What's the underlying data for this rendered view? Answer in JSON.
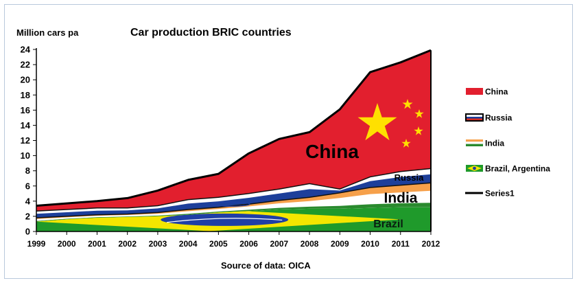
{
  "chart_data": {
    "type": "area",
    "title": "Car production  BRIC countries",
    "ylabel": "Million cars pa",
    "xlabel": "Source of data: OICA",
    "ylim": [
      0,
      24
    ],
    "yticks": [
      0,
      2,
      4,
      6,
      8,
      10,
      12,
      14,
      16,
      18,
      20,
      22,
      24
    ],
    "x": [
      "1999",
      "2000",
      "2001",
      "2002",
      "2003",
      "2004",
      "2005",
      "2006",
      "2007",
      "2008",
      "2009",
      "2010",
      "2011",
      "2012"
    ],
    "grid": false,
    "legend_position": "right",
    "series": [
      {
        "name": "Brazil, Argentina",
        "area_label": "Brazil",
        "color": "#1f9a2b",
        "values": [
          1.3,
          1.6,
          1.8,
          1.9,
          2.0,
          2.2,
          2.5,
          2.7,
          2.9,
          3.0,
          3.0,
          3.1,
          3.2,
          3.2
        ]
      },
      {
        "name": "India",
        "area_label": "India",
        "color": "#f6a04a",
        "values": [
          1.8,
          2.0,
          2.2,
          2.3,
          2.5,
          2.9,
          3.2,
          3.6,
          4.1,
          4.5,
          5.1,
          5.8,
          6.1,
          6.4
        ]
      },
      {
        "name": "Russia",
        "area_label": "Russia",
        "color": "#1d3f9a",
        "values": [
          2.7,
          2.9,
          3.1,
          3.1,
          3.4,
          4.2,
          4.5,
          5.0,
          5.6,
          6.3,
          5.6,
          7.2,
          7.9,
          8.3
        ]
      },
      {
        "name": "China",
        "area_label": "China",
        "color": "#e21f2e",
        "values": [
          3.4,
          3.7,
          4.0,
          4.4,
          5.4,
          6.8,
          7.6,
          10.3,
          12.2,
          13.1,
          16.1,
          21.0,
          22.3,
          23.9
        ]
      },
      {
        "name": "Series1",
        "color": "#000000",
        "values": [
          3.4,
          3.7,
          4.0,
          4.4,
          5.4,
          6.8,
          7.6,
          10.3,
          12.2,
          13.1,
          16.1,
          21.0,
          22.3,
          23.9
        ]
      }
    ]
  }
}
